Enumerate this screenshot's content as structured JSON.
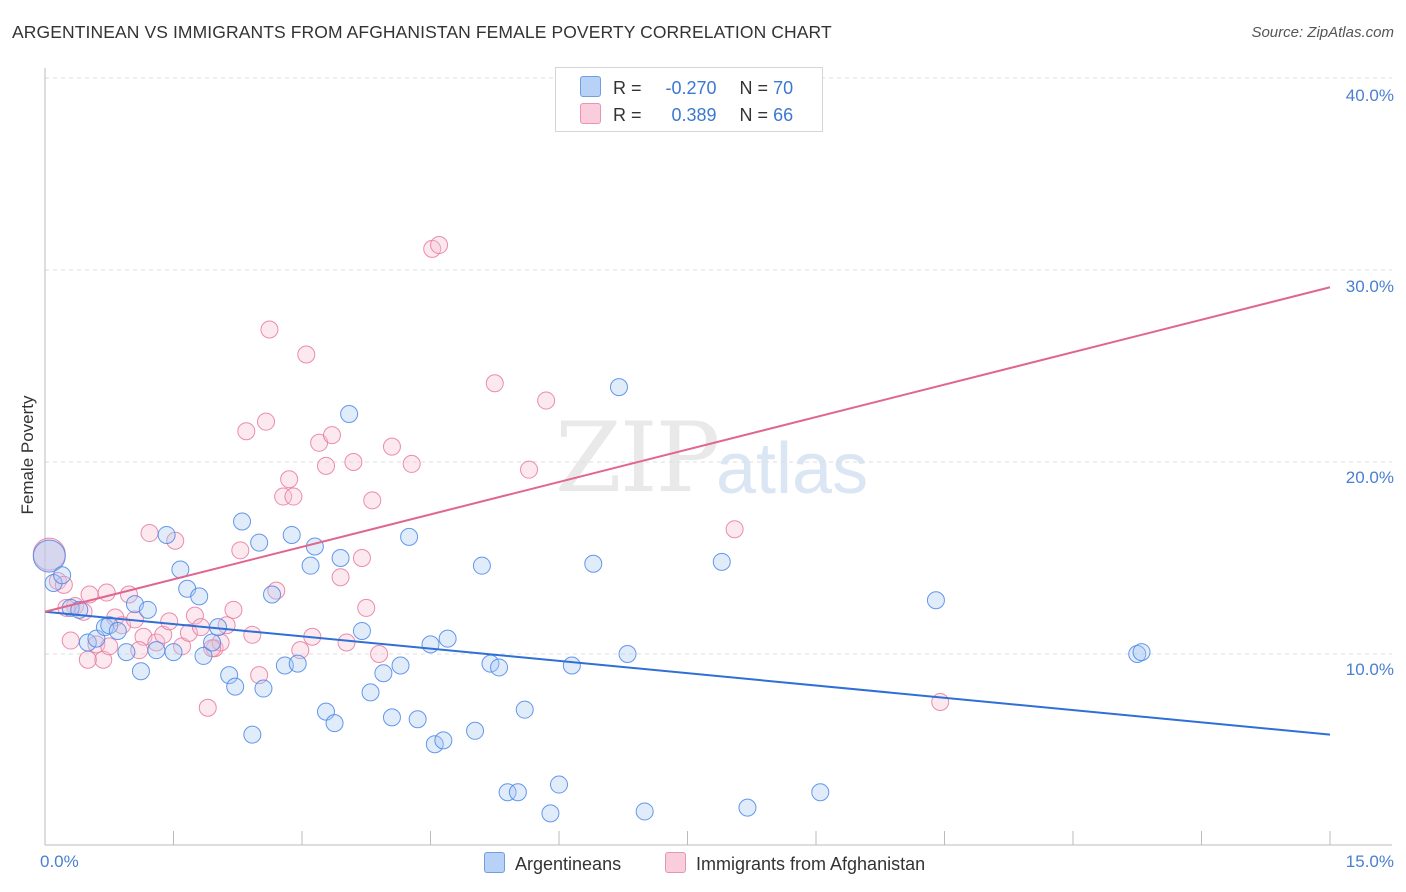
{
  "title": "ARGENTINEAN VS IMMIGRANTS FROM AFGHANISTAN FEMALE POVERTY CORRELATION CHART",
  "source": "Source: ZipAtlas.com",
  "watermark": {
    "zip": "ZIP",
    "atlas": "atlas"
  },
  "colors": {
    "blue": "#4a86e8",
    "blue_fill": "#a8c8f4",
    "blue_line": "#2f6fd6",
    "pink": "#e879a0",
    "pink_fill": "#f7bfd2",
    "pink_line": "#e06690",
    "grid": "#dddddd",
    "axis_text": "#4a7fd0"
  },
  "legend": {
    "rows": [
      {
        "r_label": "R =",
        "r_value": "-0.270",
        "n_label": "N =",
        "n_value": "70"
      },
      {
        "r_label": "R =",
        "r_value": "0.389",
        "n_label": "N =",
        "n_value": "66"
      }
    ]
  },
  "bottom_legend": [
    "Argentineans",
    "Immigrants from Afghanistan"
  ],
  "chart_data": {
    "type": "scatter",
    "title": "ARGENTINEAN VS IMMIGRANTS FROM AFGHANISTAN FEMALE POVERTY CORRELATION CHART",
    "xlabel": "",
    "ylabel": "Female Poverty",
    "xlim": [
      0,
      15
    ],
    "ylim": [
      0,
      40
    ],
    "x_tick_labels": [
      "0.0%",
      "15.0%"
    ],
    "y_tick_labels": [
      "10.0%",
      "20.0%",
      "30.0%",
      "40.0%"
    ],
    "y_ticks": [
      10,
      20,
      30,
      40
    ],
    "series": [
      {
        "name": "Argentineans",
        "color": "#4a86e8",
        "trend": {
          "x": [
            0,
            15
          ],
          "y": [
            12.2,
            5.8
          ]
        },
        "points": [
          [
            0.05,
            15.1
          ],
          [
            0.1,
            13.7
          ],
          [
            0.2,
            14.1
          ],
          [
            0.3,
            12.4
          ],
          [
            0.4,
            12.3
          ],
          [
            0.5,
            10.6
          ],
          [
            0.6,
            10.8
          ],
          [
            0.7,
            11.4
          ],
          [
            0.75,
            11.5
          ],
          [
            0.85,
            11.2
          ],
          [
            0.95,
            10.1
          ],
          [
            1.05,
            12.6
          ],
          [
            1.12,
            9.1
          ],
          [
            1.2,
            12.3
          ],
          [
            1.3,
            10.2
          ],
          [
            1.42,
            16.2
          ],
          [
            1.5,
            10.1
          ],
          [
            1.58,
            14.4
          ],
          [
            1.66,
            13.4
          ],
          [
            1.8,
            13.0
          ],
          [
            1.85,
            9.9
          ],
          [
            1.95,
            10.6
          ],
          [
            2.02,
            11.4
          ],
          [
            2.15,
            8.9
          ],
          [
            2.22,
            8.3
          ],
          [
            2.3,
            16.9
          ],
          [
            2.42,
            5.8
          ],
          [
            2.5,
            15.8
          ],
          [
            2.55,
            8.2
          ],
          [
            2.65,
            13.1
          ],
          [
            2.8,
            9.4
          ],
          [
            2.88,
            16.2
          ],
          [
            2.95,
            9.5
          ],
          [
            3.1,
            14.6
          ],
          [
            3.15,
            15.6
          ],
          [
            3.28,
            7.0
          ],
          [
            3.38,
            6.4
          ],
          [
            3.45,
            15.0
          ],
          [
            3.55,
            22.5
          ],
          [
            3.7,
            11.2
          ],
          [
            3.8,
            8.0
          ],
          [
            3.95,
            9.0
          ],
          [
            4.05,
            6.7
          ],
          [
            4.15,
            9.4
          ],
          [
            4.25,
            16.1
          ],
          [
            4.35,
            6.6
          ],
          [
            4.5,
            10.5
          ],
          [
            4.55,
            5.3
          ],
          [
            4.65,
            5.5
          ],
          [
            4.7,
            10.8
          ],
          [
            5.02,
            6.0
          ],
          [
            5.1,
            14.6
          ],
          [
            5.2,
            9.5
          ],
          [
            5.3,
            9.3
          ],
          [
            5.4,
            2.8
          ],
          [
            5.52,
            2.8
          ],
          [
            5.6,
            7.1
          ],
          [
            5.9,
            1.7
          ],
          [
            6.0,
            3.2
          ],
          [
            6.15,
            9.4
          ],
          [
            6.4,
            14.7
          ],
          [
            6.7,
            23.9
          ],
          [
            6.8,
            10.0
          ],
          [
            7.0,
            1.8
          ],
          [
            7.9,
            14.8
          ],
          [
            8.2,
            2.0
          ],
          [
            9.05,
            2.8
          ],
          [
            10.4,
            12.8
          ],
          [
            12.75,
            10.0
          ],
          [
            12.8,
            10.1
          ]
        ]
      },
      {
        "name": "Immigrants from Afghanistan",
        "color": "#e879a0",
        "trend": {
          "x": [
            0,
            15
          ],
          "y": [
            12.2,
            29.1
          ]
        },
        "points": [
          [
            0.05,
            15.2
          ],
          [
            0.15,
            13.8
          ],
          [
            0.22,
            13.6
          ],
          [
            0.3,
            10.7
          ],
          [
            0.35,
            12.5
          ],
          [
            0.45,
            12.2
          ],
          [
            0.52,
            13.1
          ],
          [
            0.6,
            10.5
          ],
          [
            0.68,
            9.7
          ],
          [
            0.75,
            10.4
          ],
          [
            0.82,
            11.9
          ],
          [
            0.9,
            11.5
          ],
          [
            0.98,
            13.1
          ],
          [
            1.05,
            11.8
          ],
          [
            1.15,
            10.9
          ],
          [
            1.22,
            16.3
          ],
          [
            1.3,
            10.6
          ],
          [
            1.38,
            11.0
          ],
          [
            1.45,
            11.7
          ],
          [
            1.52,
            15.9
          ],
          [
            1.6,
            10.4
          ],
          [
            1.68,
            11.1
          ],
          [
            1.75,
            12.0
          ],
          [
            1.82,
            11.4
          ],
          [
            1.9,
            7.2
          ],
          [
            1.98,
            10.3
          ],
          [
            2.05,
            10.6
          ],
          [
            2.12,
            11.5
          ],
          [
            2.2,
            12.3
          ],
          [
            2.28,
            15.4
          ],
          [
            2.35,
            21.6
          ],
          [
            2.42,
            11.0
          ],
          [
            2.5,
            8.9
          ],
          [
            2.58,
            22.1
          ],
          [
            2.62,
            26.9
          ],
          [
            2.7,
            13.3
          ],
          [
            2.78,
            18.2
          ],
          [
            2.85,
            19.1
          ],
          [
            2.9,
            18.2
          ],
          [
            2.98,
            10.2
          ],
          [
            3.05,
            25.6
          ],
          [
            3.12,
            10.9
          ],
          [
            3.2,
            21.0
          ],
          [
            3.28,
            19.8
          ],
          [
            3.35,
            21.4
          ],
          [
            3.45,
            14.0
          ],
          [
            3.52,
            10.6
          ],
          [
            3.6,
            20.0
          ],
          [
            3.7,
            15.0
          ],
          [
            3.75,
            12.4
          ],
          [
            3.82,
            18.0
          ],
          [
            3.9,
            10.0
          ],
          [
            4.05,
            20.8
          ],
          [
            4.28,
            19.9
          ],
          [
            4.52,
            31.1
          ],
          [
            4.6,
            31.3
          ],
          [
            5.25,
            24.1
          ],
          [
            5.65,
            19.6
          ],
          [
            5.85,
            23.2
          ],
          [
            8.05,
            16.5
          ],
          [
            0.25,
            12.4
          ],
          [
            0.5,
            9.7
          ],
          [
            0.72,
            13.2
          ],
          [
            1.1,
            10.2
          ],
          [
            1.95,
            10.3
          ],
          [
            10.45,
            7.5
          ]
        ]
      }
    ]
  }
}
